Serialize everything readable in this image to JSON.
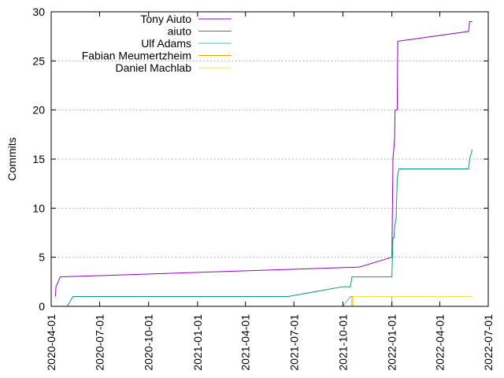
{
  "chart_data": {
    "type": "line",
    "ylabel": "Commits",
    "xlabel": "",
    "ylim": [
      0,
      30
    ],
    "xlim": [
      "2020-04-01",
      "2022-07-01"
    ],
    "grid": "horizontal dotted",
    "legend_position": "top-left",
    "y_ticks": [
      "0",
      "5",
      "10",
      "15",
      "20",
      "25",
      "30"
    ],
    "x_ticks": [
      "2020-04-01",
      "2020-07-01",
      "2020-10-01",
      "2021-01-01",
      "2021-04-01",
      "2021-07-01",
      "2021-10-01",
      "2022-01-01",
      "2022-04-01",
      "2022-07-01"
    ],
    "series": [
      {
        "name": "Tony Aiuto",
        "color": "#9400d3",
        "points": [
          [
            "2020-04-09",
            1
          ],
          [
            "2020-04-10",
            2
          ],
          [
            "2020-04-14",
            2.5
          ],
          [
            "2020-04-18",
            3
          ],
          [
            "2021-11-01",
            4
          ],
          [
            "2022-01-01",
            5
          ],
          [
            "2022-01-03",
            15
          ],
          [
            "2022-01-06",
            17
          ],
          [
            "2022-01-07",
            20
          ],
          [
            "2022-01-11",
            20
          ],
          [
            "2022-01-12",
            27
          ],
          [
            "2022-05-25",
            28
          ],
          [
            "2022-05-27",
            29
          ],
          [
            "2022-06-01",
            29
          ]
        ]
      },
      {
        "name": "aiuto",
        "color": "#009e73",
        "points": [
          [
            "2020-05-01",
            0
          ],
          [
            "2020-05-12",
            1
          ],
          [
            "2021-06-20",
            1
          ],
          [
            "2021-10-01",
            2
          ],
          [
            "2021-10-15",
            2
          ],
          [
            "2021-10-18",
            3
          ],
          [
            "2022-01-01",
            3
          ],
          [
            "2022-01-03",
            7
          ],
          [
            "2022-01-05",
            7
          ],
          [
            "2022-01-06",
            8
          ],
          [
            "2022-01-09",
            9
          ],
          [
            "2022-01-11",
            13
          ],
          [
            "2022-01-14",
            14
          ],
          [
            "2022-05-25",
            14
          ],
          [
            "2022-05-27",
            15
          ],
          [
            "2022-06-01",
            16
          ]
        ]
      },
      {
        "name": "Ulf Adams",
        "color": "#56b4e9",
        "points": [
          [
            "2021-10-01",
            0
          ],
          [
            "2021-10-15",
            1
          ],
          [
            "2022-06-01",
            1
          ]
        ]
      },
      {
        "name": "Fabian Meumertzheim",
        "color": "#e69f00",
        "points": [
          [
            "2021-10-18",
            0
          ],
          [
            "2021-10-18",
            1
          ],
          [
            "2022-01-01",
            1
          ],
          [
            "2022-01-01",
            0
          ]
        ]
      },
      {
        "name": "Daniel Machlab",
        "color": "#f0e442",
        "points": [
          [
            "2021-10-20",
            0
          ],
          [
            "2021-10-20",
            1
          ],
          [
            "2022-06-01",
            1
          ]
        ]
      }
    ]
  }
}
